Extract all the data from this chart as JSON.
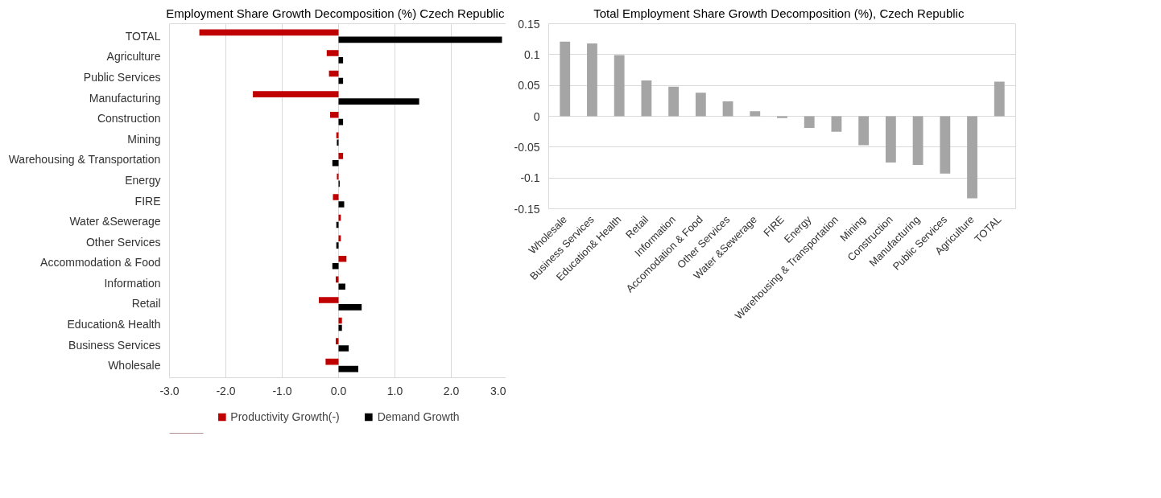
{
  "chart_data": [
    {
      "type": "bar",
      "orientation": "horizontal",
      "title": "Employment  Share Growth Decomposition  (%) Czech Republic",
      "categories": [
        "TOTAL",
        "Agriculture",
        "Public Services",
        "Manufacturing",
        "Construction",
        "Mining",
        "Warehousing & Transportation",
        "Energy",
        "FIRE",
        "Water &Sewerage",
        "Other Services",
        "Accommodation & Food",
        "Information",
        "Retail",
        "Education& Health",
        "Business Services",
        "Wholesale"
      ],
      "series": [
        {
          "name": "Productivity Growth(-)",
          "color": "#c00000",
          "values": [
            -2.47,
            -0.21,
            -0.17,
            -1.52,
            -0.15,
            -0.04,
            0.08,
            -0.03,
            -0.1,
            0.04,
            0.04,
            0.14,
            -0.05,
            -0.35,
            0.06,
            -0.05,
            -0.23
          ]
        },
        {
          "name": "Demand Growth",
          "color": "#000000",
          "values": [
            2.9,
            0.08,
            0.08,
            1.43,
            0.08,
            -0.03,
            -0.11,
            0.02,
            0.1,
            -0.04,
            -0.04,
            -0.11,
            0.12,
            0.41,
            0.06,
            0.18,
            0.35
          ]
        }
      ],
      "xlim": [
        -3,
        3
      ],
      "xticks": [
        {
          "value": -3,
          "label": "-3.0"
        },
        {
          "value": -2,
          "label": "-2.0"
        },
        {
          "value": -1,
          "label": "-1.0"
        },
        {
          "value": 0,
          "label": "0.0"
        },
        {
          "value": 1,
          "label": "1.0"
        },
        {
          "value": 2,
          "label": "2.0"
        },
        {
          "value": 3,
          "label": "3.0"
        }
      ],
      "grid": "x",
      "legend": "bottom"
    },
    {
      "type": "bar",
      "title": "Total Employment  Share Growth Decomposition  (%), Czech Republic",
      "categories": [
        "Wholesale",
        "Business Services",
        "Education& Health",
        "Retail",
        "Information",
        "Accomodation & Food",
        "Other Services",
        "Water &Sewerage",
        "FIRE",
        "Energy",
        "Warehousing & Transportation",
        "Mining",
        "Construction",
        "Manufacturing",
        "Public Services",
        "Agriculture",
        "TOTAL"
      ],
      "values": [
        0.121,
        0.118,
        0.099,
        0.058,
        0.048,
        0.038,
        0.024,
        0.008,
        -0.003,
        -0.019,
        -0.025,
        -0.047,
        -0.075,
        -0.079,
        -0.093,
        -0.133,
        0.056
      ],
      "color": "#a5a5a5",
      "ylim": [
        -0.15,
        0.15
      ],
      "yticks": [
        -0.15,
        -0.1,
        -0.05,
        0,
        0.05,
        0.1,
        0.15
      ],
      "grid": "y"
    }
  ]
}
